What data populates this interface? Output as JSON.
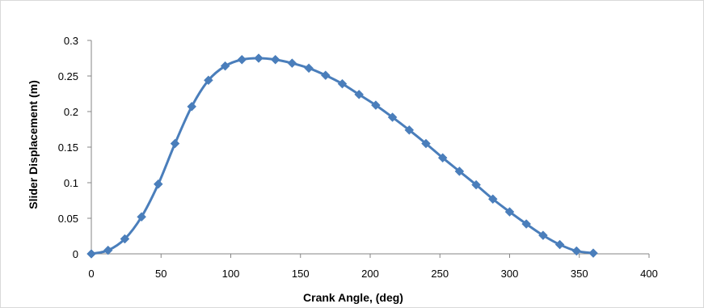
{
  "chart_data": {
    "type": "line",
    "title": "",
    "xlabel": "Crank Angle, (deg)",
    "ylabel": "Slider Displacement (m)",
    "xlim": [
      0,
      400
    ],
    "ylim": [
      0,
      0.3
    ],
    "x_ticks": [
      0,
      50,
      100,
      150,
      200,
      250,
      300,
      350,
      400
    ],
    "x_tick_labels": [
      "0",
      "50",
      "100",
      "150",
      "200",
      "250",
      "300",
      "350",
      "400"
    ],
    "y_ticks": [
      0,
      0.05,
      0.1,
      0.15,
      0.2,
      0.25,
      0.3
    ],
    "y_tick_labels": [
      "0",
      "0.05",
      "0.1",
      "0.15",
      "0.2",
      "0.25",
      "0.3"
    ],
    "grid": false,
    "legend": "none",
    "marker": "diamond",
    "colors": {
      "series": "#4a7ebb",
      "axis": "#868686"
    },
    "series": [
      {
        "x": [
          0,
          12,
          24,
          36,
          48,
          60,
          72,
          84,
          96,
          108,
          120,
          132,
          144,
          156,
          168,
          180,
          192,
          204,
          216,
          228,
          240,
          252,
          264,
          276,
          288,
          300,
          312,
          324,
          336,
          348,
          360
        ],
        "values": [
          0,
          0.005,
          0.021,
          0.052,
          0.098,
          0.155,
          0.207,
          0.244,
          0.264,
          0.273,
          0.275,
          0.273,
          0.268,
          0.261,
          0.251,
          0.239,
          0.224,
          0.209,
          0.192,
          0.174,
          0.155,
          0.135,
          0.116,
          0.097,
          0.077,
          0.059,
          0.042,
          0.026,
          0.013,
          0.004,
          0.001
        ]
      }
    ]
  }
}
